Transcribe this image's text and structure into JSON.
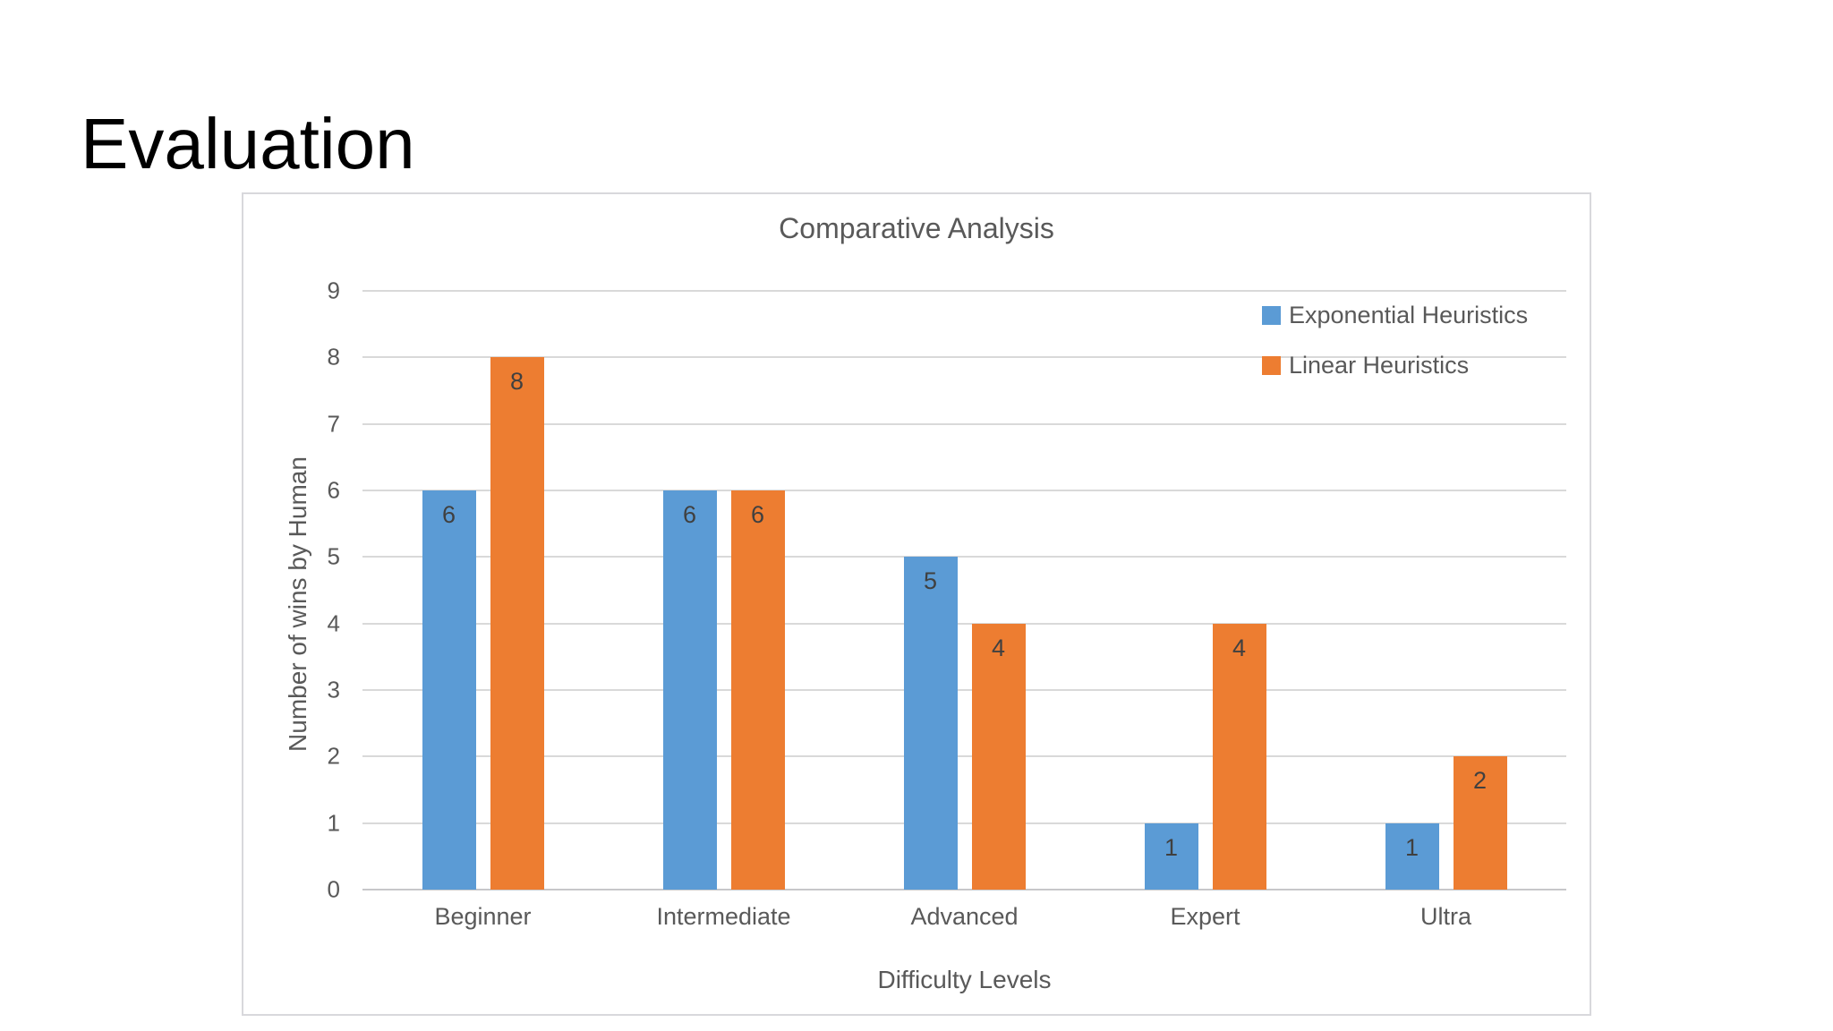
{
  "slide": {
    "title": "Evaluation"
  },
  "chart_data": {
    "type": "bar",
    "title": "Comparative Analysis",
    "xlabel": "Difficulty Levels",
    "ylabel": "Number of wins by Human",
    "categories": [
      "Beginner",
      "Intermediate",
      "Advanced",
      "Expert",
      "Ultra"
    ],
    "series": [
      {
        "name": "Exponential Heuristics",
        "color": "#5B9BD5",
        "values": [
          6,
          6,
          5,
          1,
          1
        ]
      },
      {
        "name": "Linear Heuristics",
        "color": "#ED7D31",
        "values": [
          8,
          6,
          4,
          4,
          2
        ]
      }
    ],
    "ylim": [
      0,
      9
    ],
    "yticks": [
      0,
      1,
      2,
      3,
      4,
      5,
      6,
      7,
      8,
      9
    ],
    "grid": true,
    "data_labels": true,
    "legend_position": "top-right",
    "text_color": "#595959",
    "gridline_color": "#d9d9d9"
  }
}
